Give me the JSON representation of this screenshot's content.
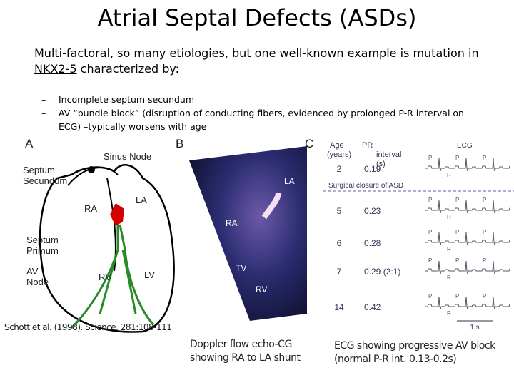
{
  "title": "Atrial Septal Defects (ASDs)",
  "intro": {
    "before": "Multi-factoral, so many etiologies, but one well-known example is ",
    "underlined": "mutation in NKX2-5",
    "after": " characterized by:"
  },
  "bullets": [
    "Incomplete septum secundum",
    "AV “bundle block” (disruption of conducting fibers, evidenced by prolonged P-R interval on ECG) –typically worsens with age"
  ],
  "panel_a": {
    "letter": "A",
    "labels": [
      "Sinus Node",
      "Septum Secundum",
      "RA",
      "LA",
      "Septum Primum",
      "AV Node",
      "RV",
      "LV"
    ]
  },
  "panel_b": {
    "letter": "B",
    "labels": [
      "LA",
      "RA",
      "TV",
      "RV"
    ]
  },
  "panel_c": {
    "letter": "C",
    "age_header": "Age (years)",
    "pr_header": "PR interval (s)",
    "ecg_header": "ECG",
    "note": "Surgical closure of ASD",
    "rows": [
      [
        "2",
        "0.19"
      ],
      [
        "5",
        "0.23"
      ],
      [
        "6",
        "0.28"
      ],
      [
        "7",
        "0.29 (2:1)"
      ],
      [
        "14",
        "0.42"
      ]
    ],
    "wave_p": "P",
    "wave_r": "R",
    "scale": "1 s"
  },
  "citation": "Schott et al. (1998). Science. 281:108-111",
  "captions": [
    "Doppler flow echo-CG showing RA to LA shunt",
    "ECG showing progressive AV block (normal P-R int. 0.13-0.2s)"
  ]
}
